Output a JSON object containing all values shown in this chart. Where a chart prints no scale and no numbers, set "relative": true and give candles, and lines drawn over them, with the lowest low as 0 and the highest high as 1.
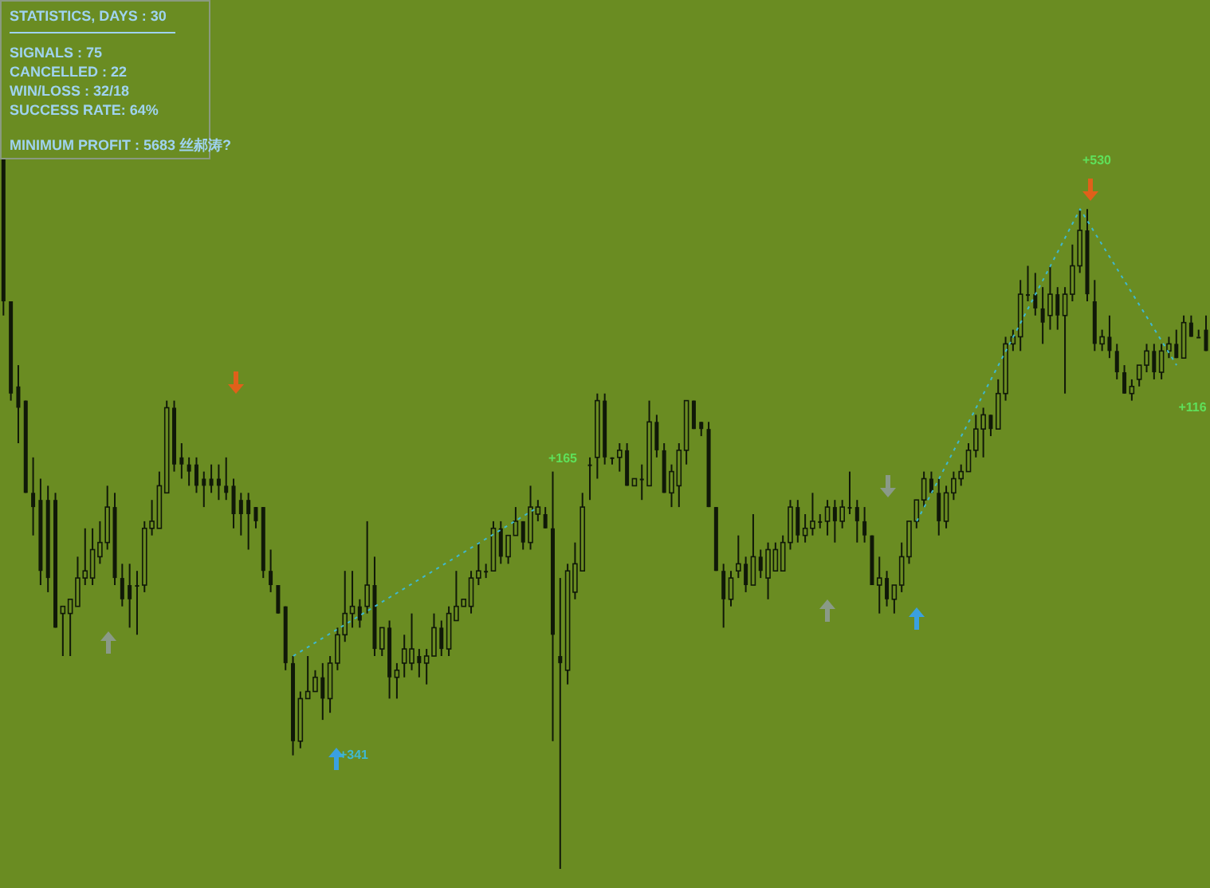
{
  "chart_data": {
    "type": "candlestick",
    "relative": true,
    "tick_labels": false,
    "color": "#101808",
    "title": "STATISTICS, DAYS : 30",
    "annotations": [
      "SIGNALS : 75",
      "CANCELLED : 22",
      "WIN/LOSS : 32/18",
      "SUCCESS RATE: 64%",
      "MINIMUM PROFIT : 5683 丝郝涛?",
      "+530",
      "+165",
      "+116",
      "+341"
    ],
    "categories": [
      null,
      null,
      null,
      null,
      null,
      null,
      null,
      null,
      null,
      null,
      null,
      null,
      null,
      null,
      null,
      null,
      null,
      null,
      null,
      null,
      null,
      null,
      null,
      null,
      null,
      null,
      null,
      null,
      null,
      null,
      null,
      null,
      null,
      null,
      null,
      null,
      null,
      null,
      null,
      null,
      null,
      null,
      null,
      null,
      null,
      null,
      null,
      null,
      null,
      null,
      null,
      null,
      null,
      null,
      null,
      null,
      null,
      null,
      null,
      null,
      null,
      null,
      null,
      null,
      null,
      null,
      null,
      null,
      null,
      null,
      null,
      null,
      null,
      null,
      null,
      null,
      null,
      null,
      null,
      null,
      null,
      null,
      null,
      null,
      null,
      null,
      null,
      null,
      null,
      null,
      null,
      null,
      null,
      null,
      null,
      null,
      null,
      null,
      null,
      null,
      null,
      null,
      null,
      null,
      null,
      null,
      null,
      null,
      null,
      null,
      null,
      null,
      null,
      null,
      null,
      null,
      null,
      null,
      null,
      null,
      null,
      null,
      null,
      null,
      null,
      null,
      null,
      null,
      null,
      null,
      null,
      null,
      null,
      null,
      null,
      null,
      null,
      null,
      null,
      null,
      null,
      null,
      null,
      null,
      null,
      null,
      null,
      null,
      null,
      null,
      null,
      null,
      null,
      null,
      null,
      null,
      null,
      null,
      null,
      null,
      null,
      null,
      null
    ],
    "ohlc": [
      [
        1.0,
        1.0,
        0.78,
        0.8
      ],
      [
        0.8,
        0.8,
        0.66,
        0.67
      ],
      [
        0.68,
        0.71,
        0.6,
        0.65
      ],
      [
        0.66,
        0.66,
        0.53,
        0.53
      ],
      [
        0.53,
        0.58,
        0.47,
        0.51
      ],
      [
        0.52,
        0.55,
        0.4,
        0.42
      ],
      [
        0.52,
        0.54,
        0.39,
        0.41
      ],
      [
        0.52,
        0.53,
        0.34,
        0.34
      ],
      [
        0.36,
        0.37,
        0.3,
        0.37
      ],
      [
        0.36,
        0.38,
        0.3,
        0.38
      ],
      [
        0.37,
        0.44,
        0.37,
        0.41
      ],
      [
        0.41,
        0.48,
        0.4,
        0.42
      ],
      [
        0.41,
        0.48,
        0.4,
        0.45
      ],
      [
        0.44,
        0.49,
        0.43,
        0.46
      ],
      [
        0.46,
        0.54,
        0.45,
        0.51
      ],
      [
        0.51,
        0.53,
        0.4,
        0.41
      ],
      [
        0.41,
        0.43,
        0.37,
        0.38
      ],
      [
        0.4,
        0.43,
        0.34,
        0.38
      ],
      [
        0.4,
        0.42,
        0.33,
        0.4
      ],
      [
        0.4,
        0.49,
        0.39,
        0.48
      ],
      [
        0.48,
        0.52,
        0.47,
        0.49
      ],
      [
        0.48,
        0.56,
        0.48,
        0.54
      ],
      [
        0.53,
        0.66,
        0.53,
        0.65
      ],
      [
        0.65,
        0.66,
        0.56,
        0.57
      ],
      [
        0.58,
        0.6,
        0.55,
        0.57
      ],
      [
        0.57,
        0.58,
        0.54,
        0.56
      ],
      [
        0.57,
        0.58,
        0.53,
        0.54
      ],
      [
        0.55,
        0.56,
        0.51,
        0.54
      ],
      [
        0.55,
        0.57,
        0.53,
        0.54
      ],
      [
        0.55,
        0.57,
        0.52,
        0.54
      ],
      [
        0.54,
        0.58,
        0.52,
        0.53
      ],
      [
        0.54,
        0.55,
        0.48,
        0.5
      ],
      [
        0.52,
        0.53,
        0.47,
        0.5
      ],
      [
        0.52,
        0.53,
        0.45,
        0.5
      ],
      [
        0.51,
        0.51,
        0.48,
        0.49
      ],
      [
        0.51,
        0.51,
        0.41,
        0.42
      ],
      [
        0.42,
        0.45,
        0.39,
        0.4
      ],
      [
        0.4,
        0.4,
        0.36,
        0.36
      ],
      [
        0.37,
        0.37,
        0.28,
        0.29
      ],
      [
        0.29,
        0.3,
        0.16,
        0.18
      ],
      [
        0.18,
        0.25,
        0.17,
        0.24
      ],
      [
        0.24,
        0.3,
        0.24,
        0.25
      ],
      [
        0.25,
        0.28,
        0.25,
        0.27
      ],
      [
        0.27,
        0.29,
        0.21,
        0.24
      ],
      [
        0.24,
        0.3,
        0.22,
        0.29
      ],
      [
        0.29,
        0.34,
        0.28,
        0.33
      ],
      [
        0.33,
        0.42,
        0.32,
        0.36
      ],
      [
        0.36,
        0.42,
        0.34,
        0.37
      ],
      [
        0.37,
        0.38,
        0.34,
        0.35
      ],
      [
        0.37,
        0.49,
        0.36,
        0.4
      ],
      [
        0.4,
        0.44,
        0.3,
        0.31
      ],
      [
        0.31,
        0.34,
        0.3,
        0.34
      ],
      [
        0.34,
        0.35,
        0.24,
        0.27
      ],
      [
        0.27,
        0.29,
        0.24,
        0.28
      ],
      [
        0.29,
        0.33,
        0.27,
        0.31
      ],
      [
        0.29,
        0.36,
        0.28,
        0.31
      ],
      [
        0.3,
        0.31,
        0.27,
        0.29
      ],
      [
        0.29,
        0.31,
        0.26,
        0.3
      ],
      [
        0.3,
        0.36,
        0.3,
        0.34
      ],
      [
        0.34,
        0.35,
        0.3,
        0.31
      ],
      [
        0.31,
        0.37,
        0.3,
        0.36
      ],
      [
        0.35,
        0.42,
        0.35,
        0.37
      ],
      [
        0.37,
        0.38,
        0.37,
        0.38
      ],
      [
        0.37,
        0.42,
        0.36,
        0.41
      ],
      [
        0.41,
        0.46,
        0.4,
        0.42
      ],
      [
        0.42,
        0.43,
        0.41,
        0.42
      ],
      [
        0.42,
        0.49,
        0.42,
        0.48
      ],
      [
        0.48,
        0.49,
        0.43,
        0.44
      ],
      [
        0.44,
        0.47,
        0.43,
        0.47
      ],
      [
        0.47,
        0.51,
        0.47,
        0.49
      ],
      [
        0.49,
        0.49,
        0.45,
        0.46
      ],
      [
        0.46,
        0.54,
        0.45,
        0.51
      ],
      [
        0.5,
        0.52,
        0.49,
        0.51
      ],
      [
        0.5,
        0.51,
        0.48,
        0.48
      ],
      [
        0.48,
        0.56,
        0.18,
        0.33
      ],
      [
        0.3,
        0.41,
        0.0,
        0.29
      ],
      [
        0.28,
        0.43,
        0.26,
        0.42
      ],
      [
        0.39,
        0.46,
        0.38,
        0.43
      ],
      [
        0.42,
        0.53,
        0.42,
        0.51
      ],
      [
        0.57,
        0.58,
        0.52,
        0.57
      ],
      [
        0.58,
        0.67,
        0.55,
        0.66
      ],
      [
        0.66,
        0.67,
        0.57,
        0.58
      ],
      [
        0.58,
        0.58,
        0.57,
        0.58
      ],
      [
        0.58,
        0.6,
        0.56,
        0.59
      ],
      [
        0.59,
        0.6,
        0.54,
        0.54
      ],
      [
        0.54,
        0.55,
        0.54,
        0.55
      ],
      [
        0.55,
        0.57,
        0.52,
        0.55
      ],
      [
        0.54,
        0.66,
        0.54,
        0.63
      ],
      [
        0.63,
        0.64,
        0.58,
        0.59
      ],
      [
        0.59,
        0.6,
        0.53,
        0.53
      ],
      [
        0.53,
        0.57,
        0.51,
        0.56
      ],
      [
        0.54,
        0.6,
        0.51,
        0.59
      ],
      [
        0.59,
        0.66,
        0.57,
        0.66
      ],
      [
        0.66,
        0.66,
        0.62,
        0.62
      ],
      [
        0.63,
        0.63,
        0.61,
        0.62
      ],
      [
        0.62,
        0.63,
        0.51,
        0.51
      ],
      [
        0.51,
        0.51,
        0.42,
        0.42
      ],
      [
        0.42,
        0.43,
        0.34,
        0.38
      ],
      [
        0.38,
        0.42,
        0.37,
        0.41
      ],
      [
        0.42,
        0.47,
        0.41,
        0.43
      ],
      [
        0.43,
        0.44,
        0.39,
        0.4
      ],
      [
        0.4,
        0.5,
        0.4,
        0.44
      ],
      [
        0.44,
        0.45,
        0.41,
        0.42
      ],
      [
        0.41,
        0.46,
        0.38,
        0.45
      ],
      [
        0.42,
        0.46,
        0.42,
        0.45
      ],
      [
        0.42,
        0.47,
        0.42,
        0.46
      ],
      [
        0.46,
        0.52,
        0.45,
        0.51
      ],
      [
        0.51,
        0.52,
        0.46,
        0.47
      ],
      [
        0.47,
        0.5,
        0.46,
        0.48
      ],
      [
        0.48,
        0.53,
        0.47,
        0.49
      ],
      [
        0.49,
        0.5,
        0.48,
        0.49
      ],
      [
        0.49,
        0.52,
        0.47,
        0.51
      ],
      [
        0.51,
        0.52,
        0.46,
        0.49
      ],
      [
        0.49,
        0.52,
        0.48,
        0.51
      ],
      [
        0.51,
        0.56,
        0.5,
        0.51
      ],
      [
        0.51,
        0.52,
        0.46,
        0.49
      ],
      [
        0.49,
        0.51,
        0.46,
        0.47
      ],
      [
        0.47,
        0.47,
        0.4,
        0.4
      ],
      [
        0.4,
        0.44,
        0.36,
        0.41
      ],
      [
        0.41,
        0.42,
        0.37,
        0.38
      ],
      [
        0.38,
        0.4,
        0.36,
        0.4
      ],
      [
        0.4,
        0.46,
        0.39,
        0.44
      ],
      [
        0.44,
        0.49,
        0.43,
        0.49
      ],
      [
        0.49,
        0.52,
        0.48,
        0.52
      ],
      [
        0.52,
        0.56,
        0.51,
        0.55
      ],
      [
        0.55,
        0.56,
        0.53,
        0.53
      ],
      [
        0.53,
        0.55,
        0.47,
        0.49
      ],
      [
        0.49,
        0.54,
        0.48,
        0.53
      ],
      [
        0.53,
        0.56,
        0.52,
        0.55
      ],
      [
        0.55,
        0.57,
        0.54,
        0.56
      ],
      [
        0.56,
        0.6,
        0.56,
        0.59
      ],
      [
        0.59,
        0.64,
        0.58,
        0.62
      ],
      [
        0.62,
        0.65,
        0.58,
        0.64
      ],
      [
        0.64,
        0.64,
        0.61,
        0.62
      ],
      [
        0.62,
        0.69,
        0.62,
        0.67
      ],
      [
        0.67,
        0.75,
        0.66,
        0.74
      ],
      [
        0.74,
        0.76,
        0.73,
        0.75
      ],
      [
        0.75,
        0.83,
        0.73,
        0.81
      ],
      [
        0.81,
        0.85,
        0.8,
        0.81
      ],
      [
        0.81,
        0.84,
        0.78,
        0.79
      ],
      [
        0.79,
        0.82,
        0.74,
        0.77
      ],
      [
        0.78,
        0.85,
        0.76,
        0.81
      ],
      [
        0.81,
        0.82,
        0.76,
        0.78
      ],
      [
        0.78,
        0.82,
        0.67,
        0.81
      ],
      [
        0.81,
        0.88,
        0.8,
        0.85
      ],
      [
        0.85,
        0.93,
        0.84,
        0.9
      ],
      [
        0.9,
        0.93,
        0.8,
        0.81
      ],
      [
        0.8,
        0.83,
        0.73,
        0.74
      ],
      [
        0.74,
        0.76,
        0.73,
        0.75
      ],
      [
        0.75,
        0.78,
        0.72,
        0.73
      ],
      [
        0.73,
        0.74,
        0.69,
        0.7
      ],
      [
        0.7,
        0.71,
        0.67,
        0.67
      ],
      [
        0.67,
        0.69,
        0.66,
        0.68
      ],
      [
        0.69,
        0.71,
        0.68,
        0.71
      ],
      [
        0.71,
        0.74,
        0.7,
        0.73
      ],
      [
        0.73,
        0.74,
        0.69,
        0.7
      ],
      [
        0.7,
        0.74,
        0.69,
        0.73
      ],
      [
        0.73,
        0.75,
        0.72,
        0.74
      ],
      [
        0.74,
        0.76,
        0.72,
        0.72
      ],
      [
        0.72,
        0.78,
        0.72,
        0.77
      ],
      [
        0.77,
        0.78,
        0.75,
        0.75
      ],
      [
        0.75,
        0.76,
        0.75,
        0.75
      ],
      [
        0.76,
        0.78,
        0.73,
        0.73
      ]
    ],
    "series": [
      {
        "type": "line",
        "color": "#3fb8d0",
        "line_style": "dotted",
        "values": [
          null,
          null,
          null,
          null,
          null,
          null,
          null,
          null,
          null,
          null,
          null,
          null,
          null,
          null,
          null,
          null,
          null,
          null,
          null,
          null,
          null,
          null,
          null,
          null,
          null,
          null,
          null,
          null,
          null,
          null,
          null,
          null,
          null,
          null,
          null,
          null,
          null,
          null,
          null,
          0.3,
          null,
          null,
          null,
          null,
          null,
          null,
          null,
          null,
          null,
          null,
          null,
          null,
          null,
          null,
          null,
          null,
          null,
          null,
          null,
          null,
          null,
          null,
          null,
          null,
          null,
          null,
          null,
          null,
          null,
          null,
          null,
          null,
          0.51,
          null,
          null,
          null,
          null,
          null,
          null,
          null,
          null,
          null,
          null,
          null,
          null,
          null,
          null,
          null,
          null,
          null,
          null,
          null,
          null,
          null,
          null,
          null,
          null,
          null,
          null,
          null,
          null,
          null,
          null,
          null,
          null,
          null,
          null,
          null,
          null,
          null,
          null,
          null,
          null,
          null,
          null,
          null,
          null,
          null,
          null,
          null,
          null,
          null,
          null,
          null,
          null,
          null,
          null,
          null,
          null,
          null,
          null,
          null,
          null,
          null,
          null,
          null,
          null,
          null,
          null,
          null,
          null,
          null,
          null,
          null,
          null,
          null,
          null,
          null,
          null,
          null,
          null,
          null,
          null,
          null,
          null,
          null,
          null,
          null,
          null,
          null,
          null,
          null,
          null
        ]
      },
      {
        "type": "line",
        "color": "#3fb8d0",
        "line_style": "dotted",
        "values": [
          null,
          null,
          null,
          null,
          null,
          null,
          null,
          null,
          null,
          null,
          null,
          null,
          null,
          null,
          null,
          null,
          null,
          null,
          null,
          null,
          null,
          null,
          null,
          null,
          null,
          null,
          null,
          null,
          null,
          null,
          null,
          null,
          null,
          null,
          null,
          null,
          null,
          null,
          null,
          null,
          null,
          null,
          null,
          null,
          null,
          null,
          null,
          null,
          null,
          null,
          null,
          null,
          null,
          null,
          null,
          null,
          null,
          null,
          null,
          null,
          null,
          null,
          null,
          null,
          null,
          null,
          null,
          null,
          null,
          null,
          null,
          null,
          null,
          null,
          null,
          null,
          null,
          null,
          null,
          null,
          null,
          null,
          null,
          null,
          null,
          null,
          null,
          null,
          null,
          null,
          null,
          null,
          null,
          null,
          null,
          null,
          null,
          null,
          null,
          null,
          null,
          null,
          null,
          null,
          null,
          null,
          null,
          null,
          null,
          null,
          null,
          null,
          null,
          null,
          null,
          null,
          null,
          null,
          null,
          null,
          null,
          null,
          null,
          0.49,
          null,
          null,
          null,
          null,
          null,
          null,
          null,
          null,
          null,
          null,
          null,
          null,
          null,
          null,
          null,
          null,
          null,
          null,
          null,
          null,
          null,
          0.93,
          null,
          null,
          null,
          null,
          null,
          null,
          null,
          null,
          null,
          null,
          null,
          null,
          0.71,
          null,
          null,
          null,
          null
        ]
      }
    ]
  }
}
